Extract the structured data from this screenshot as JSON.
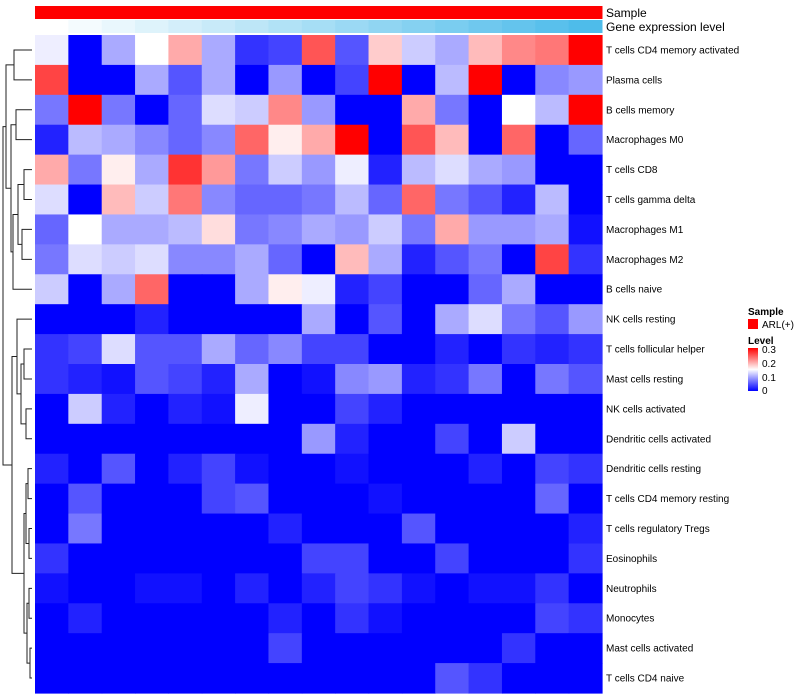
{
  "chart_data": {
    "type": "heatmap",
    "annotations": [
      {
        "name": "Sample",
        "color": "#ff0000"
      },
      {
        "name": "Gene expression level",
        "colors": [
          "#ffffff",
          "#f4fbfe",
          "#e9f7fd",
          "#def3fb",
          "#d3eefa",
          "#c8eaf9",
          "#bde6f7",
          "#b1e2f6",
          "#a6def5",
          "#9bd9f4",
          "#90d5f2",
          "#85d1f1",
          "#7acdf0",
          "#6fc8ee",
          "#64c4ed",
          "#59c0ec",
          "#4ebcea"
        ]
      }
    ],
    "rows": [
      "T cells CD4 memory activated",
      "Plasma cells",
      "B cells memory",
      "Macrophages M0",
      "T cells CD8",
      "T cells gamma delta",
      "Macrophages M1",
      "Macrophages M2",
      "B cells naive",
      "NK cells resting",
      "T cells follicular helper",
      "Mast cells resting",
      "NK cells activated",
      "Dendritic cells activated",
      "Dendritic cells resting",
      "T cells CD4 memory resting",
      "T cells regulatory  Tregs",
      "Eosinophils",
      "Neutrophils",
      "Monocytes",
      "Mast cells activated",
      "T cells CD4 naive"
    ],
    "values": [
      [
        0.14,
        0.0,
        0.1,
        0.15,
        0.2,
        0.1,
        0.03,
        0.04,
        0.25,
        0.05,
        0.18,
        0.12,
        0.1,
        0.19,
        0.22,
        0.23,
        0.3
      ],
      [
        0.26,
        0.0,
        0.0,
        0.1,
        0.05,
        0.1,
        0.0,
        0.09,
        0.0,
        0.04,
        0.3,
        0.0,
        0.11,
        0.3,
        0.0,
        0.08,
        0.09
      ],
      [
        0.07,
        0.3,
        0.07,
        0.0,
        0.06,
        0.13,
        0.12,
        0.22,
        0.09,
        0.0,
        0.0,
        0.2,
        0.07,
        0.0,
        0.15,
        0.11,
        0.3
      ],
      [
        0.02,
        0.11,
        0.1,
        0.08,
        0.06,
        0.08,
        0.24,
        0.16,
        0.2,
        0.3,
        0.0,
        0.25,
        0.19,
        0.0,
        0.24,
        0.0,
        0.06
      ],
      [
        0.2,
        0.07,
        0.16,
        0.1,
        0.27,
        0.21,
        0.07,
        0.12,
        0.09,
        0.14,
        0.02,
        0.11,
        0.13,
        0.1,
        0.09,
        0.0,
        0.0
      ],
      [
        0.13,
        0.0,
        0.19,
        0.12,
        0.23,
        0.08,
        0.06,
        0.06,
        0.07,
        0.11,
        0.06,
        0.24,
        0.07,
        0.05,
        0.02,
        0.11,
        0.0
      ],
      [
        0.06,
        0.15,
        0.1,
        0.1,
        0.11,
        0.17,
        0.07,
        0.08,
        0.1,
        0.09,
        0.12,
        0.07,
        0.2,
        0.09,
        0.09,
        0.1,
        0.01
      ],
      [
        0.07,
        0.13,
        0.12,
        0.13,
        0.08,
        0.08,
        0.1,
        0.06,
        0.0,
        0.19,
        0.1,
        0.02,
        0.05,
        0.07,
        0.0,
        0.26,
        0.03
      ],
      [
        0.12,
        0.0,
        0.1,
        0.24,
        0.0,
        0.0,
        0.1,
        0.16,
        0.14,
        0.02,
        0.04,
        0.0,
        0.0,
        0.06,
        0.1,
        0.0,
        0.0
      ],
      [
        0.0,
        0.0,
        0.0,
        0.02,
        0.0,
        0.0,
        0.0,
        0.0,
        0.1,
        0.0,
        0.05,
        0.0,
        0.1,
        0.13,
        0.07,
        0.05,
        0.09
      ],
      [
        0.03,
        0.04,
        0.13,
        0.05,
        0.05,
        0.1,
        0.06,
        0.08,
        0.04,
        0.04,
        0.0,
        0.0,
        0.02,
        0.0,
        0.03,
        0.02,
        0.03
      ],
      [
        0.03,
        0.02,
        0.01,
        0.05,
        0.04,
        0.02,
        0.1,
        0.0,
        0.01,
        0.08,
        0.09,
        0.02,
        0.03,
        0.07,
        0.0,
        0.07,
        0.05
      ],
      [
        0.0,
        0.12,
        0.02,
        0.0,
        0.02,
        0.01,
        0.14,
        0.0,
        0.0,
        0.04,
        0.02,
        0.0,
        0.0,
        0.0,
        0.0,
        0.0,
        0.0
      ],
      [
        0.0,
        0.0,
        0.0,
        0.0,
        0.0,
        0.0,
        0.0,
        0.0,
        0.09,
        0.02,
        0.0,
        0.0,
        0.04,
        0.0,
        0.12,
        0.0,
        0.0
      ],
      [
        0.02,
        0.0,
        0.05,
        0.0,
        0.02,
        0.04,
        0.01,
        0.0,
        0.0,
        0.01,
        0.0,
        0.0,
        0.0,
        0.02,
        0.0,
        0.04,
        0.03
      ],
      [
        0.0,
        0.05,
        0.0,
        0.0,
        0.0,
        0.04,
        0.05,
        0.0,
        0.0,
        0.0,
        0.01,
        0.0,
        0.0,
        0.0,
        0.0,
        0.06,
        0.0
      ],
      [
        0.0,
        0.07,
        0.0,
        0.0,
        0.0,
        0.0,
        0.0,
        0.02,
        0.0,
        0.0,
        0.0,
        0.05,
        0.0,
        0.0,
        0.0,
        0.0,
        0.02
      ],
      [
        0.03,
        0.0,
        0.0,
        0.0,
        0.0,
        0.0,
        0.0,
        0.0,
        0.04,
        0.04,
        0.0,
        0.0,
        0.04,
        0.0,
        0.0,
        0.0,
        0.03
      ],
      [
        0.01,
        0.0,
        0.0,
        0.01,
        0.01,
        0.0,
        0.02,
        0.0,
        0.02,
        0.04,
        0.03,
        0.01,
        0.0,
        0.01,
        0.01,
        0.03,
        0.0
      ],
      [
        0.0,
        0.02,
        0.0,
        0.0,
        0.0,
        0.0,
        0.0,
        0.02,
        0.0,
        0.03,
        0.01,
        0.0,
        0.0,
        0.0,
        0.0,
        0.04,
        0.03
      ],
      [
        0.0,
        0.0,
        0.0,
        0.0,
        0.0,
        0.0,
        0.0,
        0.04,
        0.0,
        0.0,
        0.0,
        0.0,
        0.0,
        0.0,
        0.03,
        0.0,
        0.0
      ],
      [
        0.0,
        0.0,
        0.0,
        0.0,
        0.0,
        0.0,
        0.0,
        0.0,
        0.0,
        0.0,
        0.0,
        0.0,
        0.05,
        0.03,
        0.0,
        0.0,
        0.0
      ]
    ],
    "color_scale": {
      "min": 0,
      "mid": 0.15,
      "max": 0.3,
      "colors": [
        "#0000ff",
        "#ffffff",
        "#ff0000"
      ]
    },
    "legend": {
      "sample_title": "Sample",
      "sample_entry": "ARL(+)",
      "level_title": "Level",
      "ticks": [
        "0.3",
        "0.2",
        "0.1",
        "0"
      ]
    }
  }
}
